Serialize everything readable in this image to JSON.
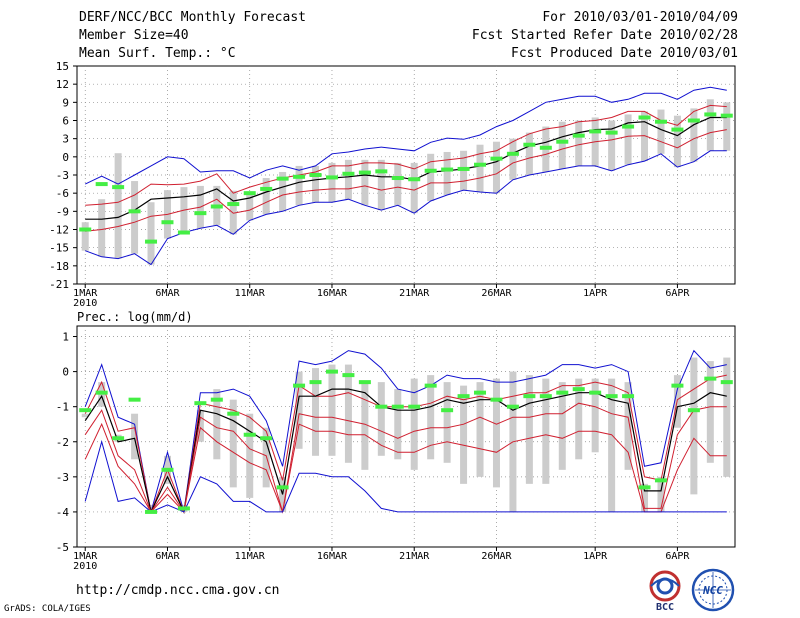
{
  "header": {
    "title": "DERF/NCC/BCC Monthly Forecast",
    "member_size": "Member Size=40",
    "variable": "Mean Surf. Temp.: °C",
    "period": "For 2010/03/01-2010/04/09",
    "started": "Fcst Started Refer Date 2010/02/28",
    "produced": "Fcst Produced Date 2010/03/01"
  },
  "footer": {
    "url": "http://cmdp.ncc.cma.gov.cn",
    "grads": "GrADS: COLA/IGES"
  },
  "logos": {
    "bcc": "BCC",
    "ncc": "NCC"
  },
  "colors": {
    "mean": "#000000",
    "spread": "#d02030",
    "extreme": "#1010d0",
    "obs": "#44ee44",
    "bar": "#cccccc"
  },
  "chart_data": [
    {
      "type": "line",
      "ylabel": "Mean Surf. Temp.: °C",
      "ylim": [
        -21,
        15
      ],
      "yticks": [
        -21,
        -18,
        -15,
        -12,
        -9,
        -6,
        -3,
        0,
        3,
        6,
        9,
        12,
        15
      ],
      "xticks": [
        {
          "day": 1,
          "label": "1MAR",
          "sub": "2010"
        },
        {
          "day": 6,
          "label": "6MAR"
        },
        {
          "day": 11,
          "label": "11MAR"
        },
        {
          "day": 16,
          "label": "16MAR"
        },
        {
          "day": 21,
          "label": "21MAR"
        },
        {
          "day": 26,
          "label": "26MAR"
        },
        {
          "day": 32,
          "label": "1APR"
        },
        {
          "day": 37,
          "label": "6APR"
        }
      ],
      "xlim": [
        0.5,
        40.5
      ],
      "days": [
        1,
        2,
        3,
        4,
        5,
        6,
        7,
        8,
        9,
        10,
        11,
        12,
        13,
        14,
        15,
        16,
        17,
        18,
        19,
        20,
        21,
        22,
        23,
        24,
        25,
        26,
        27,
        28,
        29,
        30,
        31,
        32,
        33,
        34,
        35,
        36,
        37,
        38,
        39,
        40
      ],
      "series": [
        {
          "name": "max",
          "values": [
            -4.5,
            -3.2,
            -4.5,
            -3.0,
            -1.5,
            0.0,
            -0.3,
            -2.5,
            -2.3,
            -2.3,
            -3.5,
            -2.2,
            -1.5,
            -2.2,
            -1.5,
            0.5,
            0.8,
            1.3,
            1.6,
            1.3,
            1.0,
            2.4,
            3.1,
            2.9,
            3.6,
            5.0,
            6.0,
            7.5,
            9.0,
            9.5,
            10.0,
            10.0,
            9.0,
            9.5,
            10.5,
            10.5,
            9.5,
            11.0,
            11.5,
            11.0
          ]
        },
        {
          "name": "upper",
          "values": [
            -8.0,
            -7.8,
            -7.5,
            -6.3,
            -4.5,
            -4.6,
            -4.5,
            -4.0,
            -2.8,
            -6.0,
            -5.0,
            -4.2,
            -3.5,
            -3.0,
            -2.5,
            -1.5,
            -1.5,
            -1.0,
            -1.0,
            -1.2,
            -2.0,
            -0.8,
            -0.5,
            -0.2,
            0.5,
            1.0,
            2.5,
            3.8,
            4.6,
            5.0,
            5.8,
            6.0,
            6.5,
            7.5,
            7.5,
            6.0,
            5.2,
            7.5,
            8.5,
            8.3
          ]
        },
        {
          "name": "mean",
          "values": [
            -10.3,
            -10.3,
            -10.0,
            -8.8,
            -7.0,
            -6.8,
            -6.6,
            -6.3,
            -5.3,
            -7.3,
            -6.8,
            -5.8,
            -5.0,
            -4.2,
            -3.8,
            -3.5,
            -3.3,
            -3.0,
            -3.3,
            -3.3,
            -3.8,
            -2.5,
            -2.3,
            -2.0,
            -1.5,
            -0.8,
            0.6,
            1.8,
            2.4,
            3.3,
            4.0,
            4.5,
            4.6,
            5.6,
            5.8,
            4.5,
            3.5,
            5.3,
            6.5,
            6.5
          ]
        },
        {
          "name": "lower",
          "values": [
            -12.3,
            -12.0,
            -11.5,
            -10.8,
            -9.8,
            -9.5,
            -8.8,
            -8.3,
            -7.0,
            -9.3,
            -8.8,
            -7.5,
            -6.3,
            -5.8,
            -5.5,
            -5.3,
            -5.3,
            -4.8,
            -5.5,
            -5.0,
            -5.5,
            -4.3,
            -4.3,
            -4.0,
            -3.5,
            -2.8,
            -1.0,
            -0.2,
            0.4,
            1.3,
            2.0,
            2.5,
            2.8,
            3.4,
            3.5,
            2.5,
            1.5,
            3.0,
            4.0,
            4.5
          ]
        },
        {
          "name": "min",
          "values": [
            -15.5,
            -16.5,
            -16.8,
            -16.0,
            -17.8,
            -13.5,
            -12.5,
            -11.8,
            -11.3,
            -12.8,
            -10.5,
            -9.5,
            -9.0,
            -8.0,
            -7.5,
            -7.5,
            -7.0,
            -8.0,
            -8.8,
            -8.0,
            -9.3,
            -7.3,
            -6.3,
            -5.5,
            -5.8,
            -6.0,
            -3.8,
            -3.0,
            -2.5,
            -2.0,
            -1.5,
            -1.5,
            -2.3,
            -1.3,
            -0.7,
            0.5,
            -1.7,
            -0.8,
            1.0,
            1.0
          ]
        },
        {
          "name": "obs",
          "values": [
            -12.0,
            -4.5,
            -5.0,
            -9.0,
            -14.0,
            -10.8,
            -12.5,
            -9.3,
            -8.2,
            -7.8,
            -6.0,
            -5.3,
            -3.6,
            -3.3,
            -3.0,
            -3.4,
            -2.8,
            -2.6,
            -2.4,
            -3.5,
            -3.7,
            -2.3,
            -2.1,
            -2.0,
            -1.3,
            -0.3,
            0.5,
            2.0,
            1.5,
            2.5,
            3.5,
            4.2,
            4.0,
            5.0,
            6.5,
            5.8,
            4.5,
            6.0,
            7.0,
            6.8
          ]
        }
      ],
      "bars": {
        "top": [
          -10.8,
          -7.0,
          0.6,
          -4.0,
          -7.5,
          -5.5,
          -5.0,
          -4.8,
          -4.8,
          -5.6,
          -6.0,
          -3.5,
          -2.5,
          -1.5,
          -1.5,
          -1.0,
          -0.5,
          -0.5,
          -0.5,
          -1.0,
          -1.0,
          0.5,
          0.8,
          1.0,
          2.0,
          2.5,
          3.0,
          4.0,
          5.0,
          5.8,
          6.0,
          6.5,
          6.0,
          7.0,
          7.5,
          7.8,
          6.8,
          8.0,
          9.5,
          9.0
        ]
      }
    },
    {
      "type": "line",
      "ylabel": "Prec.: log(mm/d)",
      "ylim": [
        -5,
        1.3
      ],
      "yticks": [
        -5,
        -4,
        -3,
        -2,
        -1,
        0,
        1
      ],
      "xticks": [
        {
          "day": 1,
          "label": "1MAR",
          "sub": "2010"
        },
        {
          "day": 6,
          "label": "6MAR"
        },
        {
          "day": 11,
          "label": "11MAR"
        },
        {
          "day": 16,
          "label": "16MAR"
        },
        {
          "day": 21,
          "label": "21MAR"
        },
        {
          "day": 26,
          "label": "26MAR"
        },
        {
          "day": 32,
          "label": "1APR"
        },
        {
          "day": 37,
          "label": "6APR"
        }
      ],
      "xlim": [
        0.5,
        40.5
      ],
      "days": [
        1,
        2,
        3,
        4,
        5,
        6,
        7,
        8,
        9,
        10,
        11,
        12,
        13,
        14,
        15,
        16,
        17,
        18,
        19,
        20,
        21,
        22,
        23,
        24,
        25,
        26,
        27,
        28,
        29,
        30,
        31,
        32,
        33,
        34,
        35,
        36,
        37,
        38,
        39,
        40
      ],
      "series": [
        {
          "name": "max",
          "values": [
            -1.0,
            0.2,
            -1.3,
            -1.5,
            -4.0,
            -2.3,
            -4.0,
            -0.6,
            -0.6,
            -0.5,
            -0.7,
            -1.4,
            -2.7,
            0.3,
            0.2,
            0.3,
            0.6,
            0.5,
            0.1,
            -0.5,
            -0.6,
            -0.4,
            -0.1,
            -0.2,
            -0.2,
            -0.3,
            -0.3,
            -0.2,
            -0.1,
            0.2,
            0.2,
            0.1,
            0.2,
            0.0,
            -2.7,
            -2.6,
            -0.5,
            0.6,
            0.1,
            0.2
          ]
        },
        {
          "name": "upper",
          "values": [
            -1.2,
            -0.3,
            -1.7,
            -1.6,
            -4.0,
            -2.8,
            -4.0,
            -0.9,
            -1.0,
            -1.1,
            -1.3,
            -1.7,
            -3.1,
            -0.4,
            -0.7,
            -0.7,
            -0.6,
            -0.8,
            -1.0,
            -1.0,
            -1.0,
            -0.9,
            -0.7,
            -0.8,
            -0.7,
            -0.8,
            -0.7,
            -0.6,
            -0.6,
            -0.4,
            -0.4,
            -0.3,
            -0.4,
            -0.6,
            -3.0,
            -3.1,
            -0.8,
            -0.5,
            -0.2,
            -0.1
          ]
        },
        {
          "name": "mean",
          "values": [
            -1.4,
            -0.7,
            -2.0,
            -1.9,
            -4.0,
            -3.0,
            -4.0,
            -1.1,
            -1.2,
            -1.4,
            -1.7,
            -2.0,
            -3.5,
            -0.7,
            -0.7,
            -0.5,
            -0.5,
            -0.6,
            -1.0,
            -1.1,
            -1.1,
            -1.0,
            -0.8,
            -0.9,
            -0.8,
            -0.8,
            -1.1,
            -0.9,
            -0.8,
            -0.7,
            -0.6,
            -0.6,
            -0.8,
            -0.9,
            -3.4,
            -3.4,
            -1.0,
            -0.9,
            -0.6,
            -0.7
          ]
        },
        {
          "name": "lower",
          "values": [
            -1.8,
            -1.1,
            -2.4,
            -2.8,
            -4.0,
            -3.3,
            -4.0,
            -1.3,
            -1.6,
            -1.7,
            -2.2,
            -2.4,
            -4.0,
            -1.2,
            -1.3,
            -1.3,
            -1.4,
            -1.5,
            -1.7,
            -1.9,
            -1.7,
            -1.6,
            -1.6,
            -1.5,
            -1.3,
            -1.5,
            -1.3,
            -1.3,
            -1.2,
            -1.2,
            -0.9,
            -1.0,
            -1.2,
            -1.3,
            -3.9,
            -3.9,
            -1.8,
            -1.1,
            -1.0,
            -1.0
          ]
        },
        {
          "name": "lowest",
          "values": [
            -2.5,
            -1.5,
            -2.7,
            -3.2,
            -4.0,
            -3.5,
            -4.0,
            -1.6,
            -2.0,
            -2.3,
            -2.6,
            -2.8,
            -4.0,
            -1.5,
            -1.7,
            -1.7,
            -1.8,
            -1.8,
            -2.1,
            -2.3,
            -2.3,
            -2.1,
            -2.0,
            -2.1,
            -2.2,
            -2.3,
            -2.0,
            -1.9,
            -1.8,
            -1.9,
            -1.7,
            -1.7,
            -1.8,
            -2.3,
            -4.0,
            -4.0,
            -2.8,
            -1.9,
            -2.4,
            -2.4
          ]
        },
        {
          "name": "min",
          "values": [
            -3.7,
            -2.0,
            -3.7,
            -3.6,
            -4.0,
            -3.8,
            -4.0,
            -3.0,
            -3.2,
            -3.7,
            -3.7,
            -4.0,
            -4.0,
            -2.9,
            -2.9,
            -3.0,
            -3.0,
            -3.4,
            -3.9,
            -4.0,
            -4.0,
            -4.0,
            -4.0,
            -4.0,
            -4.0,
            -4.0,
            -4.0,
            -4.0,
            -4.0,
            -4.0,
            -4.0,
            -4.0,
            -4.0,
            -4.0,
            -4.0,
            -4.0,
            -4.0,
            -4.0,
            -4.0,
            -4.0
          ]
        },
        {
          "name": "obs",
          "values": [
            -1.1,
            -0.6,
            -1.9,
            -0.8,
            -4.0,
            -2.8,
            -3.9,
            -0.9,
            -0.8,
            -1.2,
            -1.8,
            -1.9,
            -3.3,
            -0.4,
            -0.3,
            0.0,
            -0.1,
            -0.3,
            -1.0,
            -1.0,
            -1.0,
            -0.4,
            -1.1,
            -0.7,
            -0.6,
            -0.8,
            -1.0,
            -0.7,
            -0.7,
            -0.6,
            -0.5,
            -0.6,
            -0.7,
            -0.7,
            -3.3,
            -3.1,
            -0.4,
            -1.1,
            -0.2,
            -0.3
          ]
        }
      ],
      "bars": {
        "top": [
          -1.2,
          -0.3,
          -1.8,
          -1.2,
          -3.8,
          -2.4,
          -3.8,
          -1.1,
          -0.5,
          -0.8,
          -1.2,
          -1.6,
          -3.0,
          0.0,
          0.1,
          0.2,
          0.2,
          -0.3,
          -0.3,
          -0.5,
          -0.2,
          -0.1,
          -0.3,
          -0.4,
          -0.3,
          -0.2,
          0.0,
          -0.1,
          -0.2,
          -0.3,
          -0.2,
          -0.2,
          -0.2,
          -0.3,
          -3.2,
          -3.0,
          -0.1,
          0.4,
          0.3,
          0.4
        ],
        "bottom": [
          -1.3,
          -1.0,
          -2.0,
          -2.5,
          -4.0,
          -3.2,
          -4.0,
          -2.0,
          -2.5,
          -3.3,
          -3.6,
          -3.3,
          -4.0,
          -2.2,
          -2.4,
          -2.4,
          -2.6,
          -2.8,
          -2.4,
          -2.5,
          -2.8,
          -2.5,
          -2.6,
          -3.2,
          -3.0,
          -3.3,
          -4.0,
          -3.2,
          -3.2,
          -2.8,
          -2.5,
          -2.3,
          -4.0,
          -2.8,
          -4.0,
          -4.0,
          -1.6,
          -3.5,
          -2.6,
          -3.0
        ]
      }
    }
  ]
}
